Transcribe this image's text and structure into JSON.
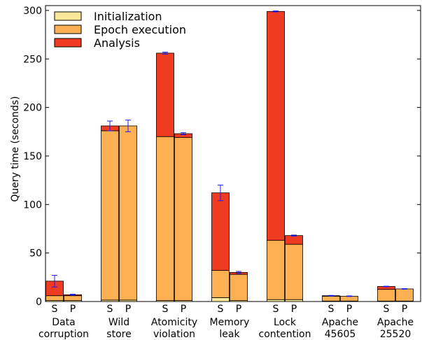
{
  "chart_data": {
    "type": "bar",
    "stacked": true,
    "ylabel": "Query time (seconds)",
    "ylim": [
      0,
      305
    ],
    "yticks": [
      0,
      50,
      100,
      150,
      200,
      250,
      300
    ],
    "legend_position": "top-left",
    "grid": false,
    "series": [
      {
        "name": "Initialization",
        "color": "#fde89a"
      },
      {
        "name": "Epoch execution",
        "color": "#fdb052"
      },
      {
        "name": "Analysis",
        "color": "#ef3b21"
      }
    ],
    "groups": [
      {
        "label_lines": [
          "Data",
          "corruption"
        ],
        "bars": [
          {
            "tag": "S",
            "values": [
              1,
              5,
              15
            ],
            "error": 6
          },
          {
            "tag": "P",
            "values": [
              1,
              5,
              1
            ],
            "error": 0.5
          }
        ]
      },
      {
        "label_lines": [
          "Wild",
          "store"
        ],
        "bars": [
          {
            "tag": "S",
            "values": [
              1.5,
              174.5,
              5
            ],
            "error": 5
          },
          {
            "tag": "P",
            "values": [
              1.5,
              179.5,
              0
            ],
            "error": 6
          }
        ]
      },
      {
        "label_lines": [
          "Atomicity",
          "violation"
        ],
        "bars": [
          {
            "tag": "S",
            "values": [
              1,
              169,
              86
            ],
            "error": 1
          },
          {
            "tag": "P",
            "values": [
              1,
              168,
              4
            ],
            "error": 1
          }
        ]
      },
      {
        "label_lines": [
          "Memory",
          "leak"
        ],
        "bars": [
          {
            "tag": "S",
            "values": [
              4,
              28,
              80
            ],
            "error": 8
          },
          {
            "tag": "P",
            "values": [
              1,
              27,
              2
            ],
            "error": 1
          }
        ]
      },
      {
        "label_lines": [
          "Lock",
          "contention"
        ],
        "bars": [
          {
            "tag": "S",
            "values": [
              2,
              61,
              236
            ],
            "error": 0.5
          },
          {
            "tag": "P",
            "values": [
              2,
              57,
              9
            ],
            "error": 0.5
          }
        ]
      },
      {
        "label_lines": [
          "Apache",
          "45605"
        ],
        "bars": [
          {
            "tag": "S",
            "values": [
              0.5,
              5,
              0.5
            ],
            "error": 0.3
          },
          {
            "tag": "P",
            "values": [
              0.5,
              5,
              0
            ],
            "error": 0.3
          }
        ]
      },
      {
        "label_lines": [
          "Apache",
          "25520"
        ],
        "bars": [
          {
            "tag": "S",
            "values": [
              0.5,
              12,
              3
            ],
            "error": 0.3
          },
          {
            "tag": "P",
            "values": [
              0.5,
              12.5,
              0
            ],
            "error": 0.3
          }
        ]
      }
    ]
  }
}
